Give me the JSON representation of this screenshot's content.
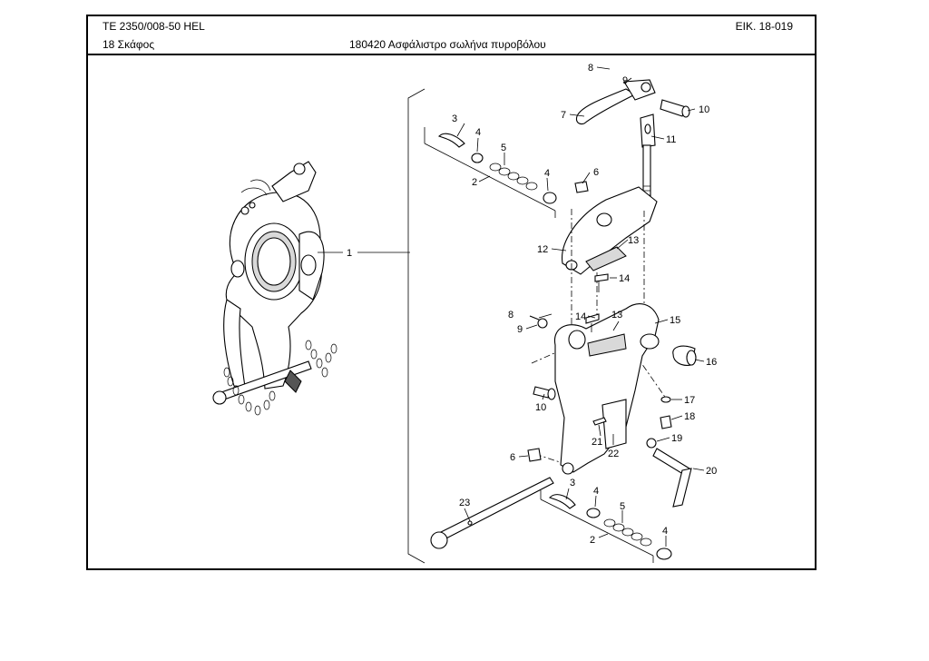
{
  "header": {
    "doc_code": "TE  2350/008-50 HEL",
    "fig_number": "ΕΙΚ. 18-019",
    "group_title": "18 Σκάφος",
    "part_title": "180420 Ασφάλιστρο σωλήνα πυροβόλου"
  },
  "callouts": {
    "c1": "1",
    "c2a": "2",
    "c3a": "3",
    "c4a": "4",
    "c5a": "5",
    "c4b": "4",
    "c6a": "6",
    "c7": "7",
    "c8a": "8",
    "c9a": "9",
    "c10a": "10",
    "c11": "11",
    "c12": "12",
    "c13a": "13",
    "c14a": "14",
    "c8b": "8",
    "c9b": "9",
    "c14b": "14",
    "c13b": "13",
    "c15": "15",
    "c16": "16",
    "c10b": "10",
    "c17": "17",
    "c18": "18",
    "c19": "19",
    "c20": "20",
    "c21": "21",
    "c22": "22",
    "c6b": "6",
    "c23": "23",
    "c3b": "3",
    "c4c": "4",
    "c5b": "5",
    "c2b": "2",
    "c4d": "4"
  }
}
